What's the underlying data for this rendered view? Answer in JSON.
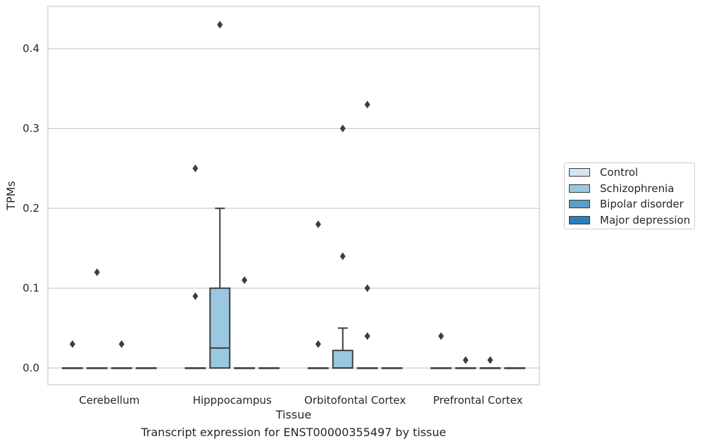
{
  "chart_data": {
    "type": "box",
    "title": "",
    "xlabel": "Tissue",
    "ylabel": "TPMs",
    "caption": "Transcript expression for ENST00000355497 by tissue",
    "ylim": [
      -0.021,
      0.453
    ],
    "yticks": [
      0.0,
      0.1,
      0.2,
      0.3,
      0.4
    ],
    "ytick_labels": [
      "0.0",
      "0.1",
      "0.2",
      "0.3",
      "0.4"
    ],
    "grid": "horizontal",
    "legend_position": "right",
    "categories": [
      "Cerebellum",
      "Hipppocampus",
      "Orbitofontal Cortex",
      "Prefrontal Cortex"
    ],
    "series": [
      {
        "name": "Control",
        "color": "#d3e4f3",
        "boxes": [
          {
            "q1": 0,
            "median": 0,
            "q3": 0,
            "whisker_low": 0,
            "whisker_high": 0,
            "outliers": [
              0.03
            ]
          },
          {
            "q1": 0,
            "median": 0,
            "q3": 0,
            "whisker_low": 0,
            "whisker_high": 0,
            "outliers": [
              0.25,
              0.09
            ]
          },
          {
            "q1": 0,
            "median": 0,
            "q3": 0,
            "whisker_low": 0,
            "whisker_high": 0,
            "outliers": [
              0.18,
              0.03
            ]
          },
          {
            "q1": 0,
            "median": 0,
            "q3": 0,
            "whisker_low": 0,
            "whisker_high": 0,
            "outliers": [
              0.04
            ]
          }
        ]
      },
      {
        "name": "Schizophrenia",
        "color": "#9ac8e0",
        "boxes": [
          {
            "q1": 0,
            "median": 0,
            "q3": 0,
            "whisker_low": 0,
            "whisker_high": 0,
            "outliers": [
              0.12
            ]
          },
          {
            "q1": 0,
            "median": 0.025,
            "q3": 0.1,
            "whisker_low": 0,
            "whisker_high": 0.2,
            "outliers": [
              0.43
            ]
          },
          {
            "q1": 0,
            "median": 0,
            "q3": 0.022,
            "whisker_low": 0,
            "whisker_high": 0.05,
            "outliers": [
              0.3,
              0.14
            ]
          },
          {
            "q1": 0,
            "median": 0,
            "q3": 0,
            "whisker_low": 0,
            "whisker_high": 0,
            "outliers": [
              0.01
            ]
          }
        ]
      },
      {
        "name": "Bipolar disorder",
        "color": "#5a9ec9",
        "boxes": [
          {
            "q1": 0,
            "median": 0,
            "q3": 0,
            "whisker_low": 0,
            "whisker_high": 0,
            "outliers": [
              0.03
            ]
          },
          {
            "q1": 0,
            "median": 0,
            "q3": 0,
            "whisker_low": 0,
            "whisker_high": 0,
            "outliers": [
              0.11
            ]
          },
          {
            "q1": 0,
            "median": 0,
            "q3": 0,
            "whisker_low": 0,
            "whisker_high": 0,
            "outliers": [
              0.33,
              0.1,
              0.04
            ]
          },
          {
            "q1": 0,
            "median": 0,
            "q3": 0,
            "whisker_low": 0,
            "whisker_high": 0,
            "outliers": [
              0.01
            ]
          }
        ]
      },
      {
        "name": "Major depression",
        "color": "#2d7dbb",
        "boxes": [
          {
            "q1": 0,
            "median": 0,
            "q3": 0,
            "whisker_low": 0,
            "whisker_high": 0,
            "outliers": []
          },
          {
            "q1": 0,
            "median": 0,
            "q3": 0,
            "whisker_low": 0,
            "whisker_high": 0,
            "outliers": []
          },
          {
            "q1": 0,
            "median": 0,
            "q3": 0,
            "whisker_low": 0,
            "whisker_high": 0,
            "outliers": []
          },
          {
            "q1": 0,
            "median": 0,
            "q3": 0,
            "whisker_low": 0,
            "whisker_high": 0,
            "outliers": []
          }
        ]
      }
    ]
  }
}
